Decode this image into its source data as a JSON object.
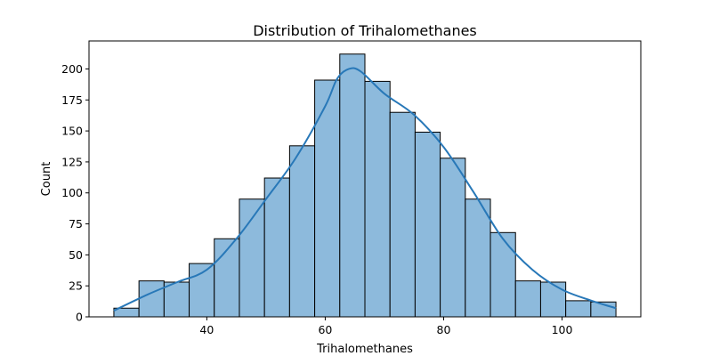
{
  "chart_data": {
    "type": "bar",
    "title": "Distribution of Trihalomethanes",
    "xlabel": "Trihalomethanes",
    "ylabel": "Count",
    "bin_edges": [
      24.3,
      28.54,
      32.78,
      37.02,
      41.26,
      45.5,
      49.74,
      53.98,
      58.22,
      62.46,
      66.7,
      70.94,
      75.18,
      79.42,
      83.66,
      87.9,
      92.14,
      96.38,
      100.62,
      104.86,
      109.1
    ],
    "counts": [
      7,
      29,
      28,
      43,
      63,
      95,
      112,
      138,
      191,
      212,
      190,
      165,
      149,
      128,
      95,
      68,
      29,
      28,
      13,
      12
    ],
    "kde": {
      "x": [
        24.3,
        30,
        35,
        40,
        45,
        50,
        55,
        60,
        62,
        64,
        66,
        70,
        75,
        80,
        85,
        90,
        95,
        100,
        105,
        109.1
      ],
      "y": [
        5,
        18,
        28,
        38,
        63,
        95,
        128,
        170,
        192,
        200,
        198,
        180,
        163,
        137,
        101,
        63,
        38,
        22,
        13,
        7
      ]
    },
    "xlim": [
      20.1,
      113.3
    ],
    "ylim": [
      0,
      222.6
    ],
    "xticks": [
      40,
      60,
      80,
      100
    ],
    "yticks": [
      0,
      25,
      50,
      75,
      100,
      125,
      150,
      175,
      200
    ],
    "bar_color": "#8dbadc",
    "edge_color": "#000000",
    "line_color": "#2878b8",
    "grid": false
  }
}
